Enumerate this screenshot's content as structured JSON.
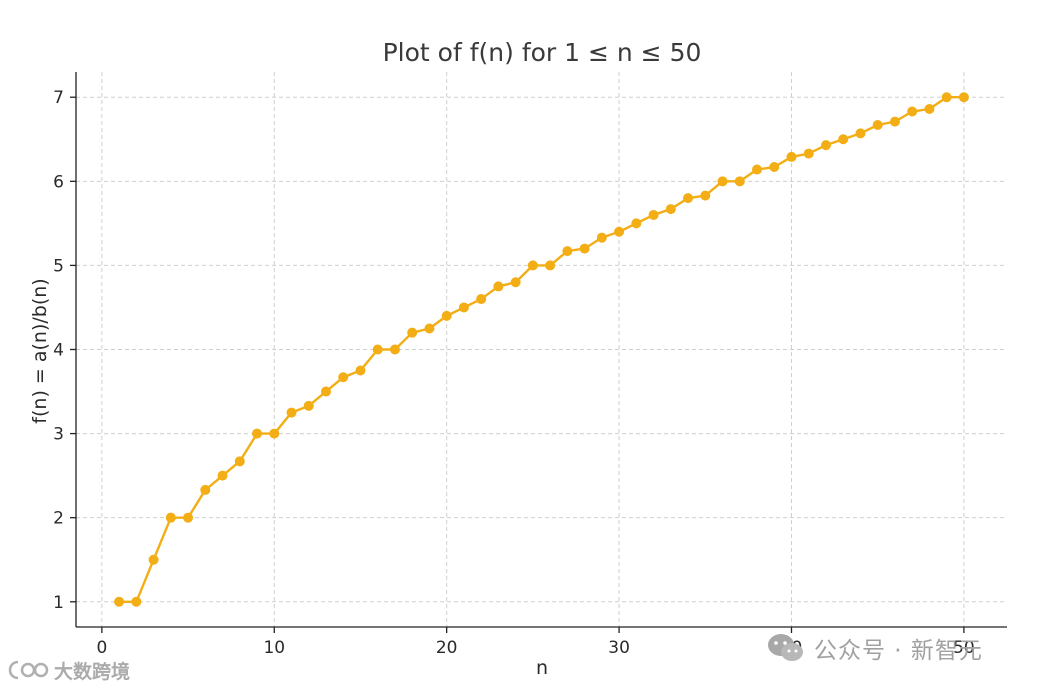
{
  "colors": {
    "series": "#F2AE14",
    "watermark": "#9a9a9a"
  },
  "watermarks": {
    "right_text": "公众号 · 新智元",
    "left_text": "大数跨境",
    "right_icon": "wechat-icon",
    "left_icon": "logo-icon"
  },
  "chart_data": {
    "type": "line",
    "title": "Plot of f(n) for 1 ≤ n ≤ 50",
    "xlabel": "n",
    "ylabel": "f(n) = a(n)/b(n)",
    "xlim": [
      -1.5,
      52.5
    ],
    "ylim": [
      0.7,
      7.3
    ],
    "xticks": [
      0,
      10,
      20,
      30,
      40,
      50
    ],
    "yticks": [
      1,
      2,
      3,
      4,
      5,
      6,
      7
    ],
    "grid": true,
    "markers": true,
    "x": [
      1,
      2,
      3,
      4,
      5,
      6,
      7,
      8,
      9,
      10,
      11,
      12,
      13,
      14,
      15,
      16,
      17,
      18,
      19,
      20,
      21,
      22,
      23,
      24,
      25,
      26,
      27,
      28,
      29,
      30,
      31,
      32,
      33,
      34,
      35,
      36,
      37,
      38,
      39,
      40,
      41,
      42,
      43,
      44,
      45,
      46,
      47,
      48,
      49,
      50
    ],
    "series": [
      {
        "values": [
          1,
          1,
          1.5,
          2,
          2,
          2.33,
          2.5,
          2.67,
          3,
          3,
          3.25,
          3.33,
          3.5,
          3.67,
          3.75,
          4,
          4,
          4.2,
          4.25,
          4.4,
          4.5,
          4.6,
          4.75,
          4.8,
          5,
          5,
          5.17,
          5.2,
          5.33,
          5.4,
          5.5,
          5.6,
          5.67,
          5.8,
          5.83,
          6,
          6,
          6.14,
          6.17,
          6.29,
          6.33,
          6.43,
          6.5,
          6.57,
          6.67,
          6.71,
          6.83,
          6.86,
          7,
          7
        ]
      }
    ]
  }
}
